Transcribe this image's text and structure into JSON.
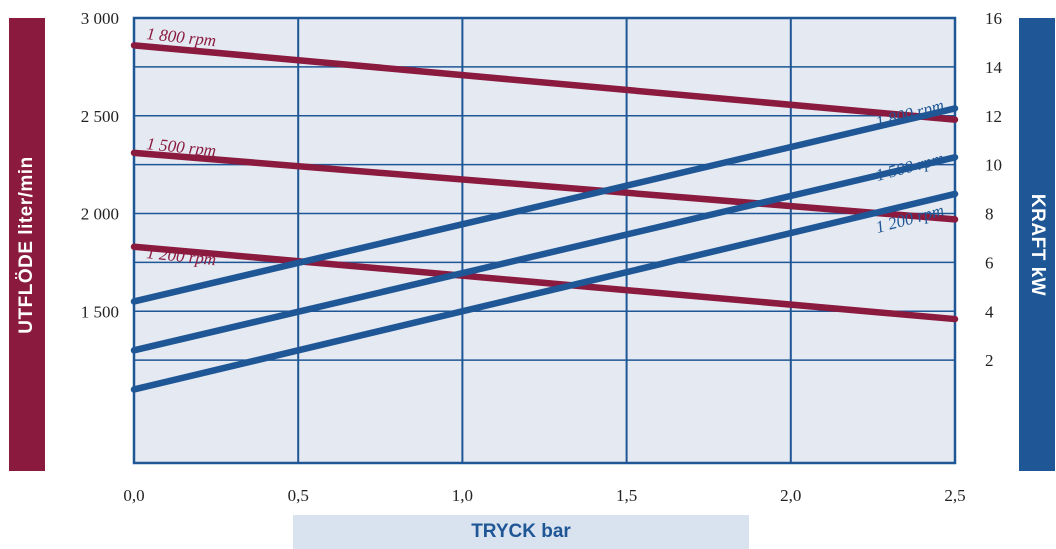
{
  "colors": {
    "flow": "#8b1a3f",
    "power": "#1f5695",
    "plot_bg": "#e4e9f2",
    "grid": "#1f5695",
    "xband_bg": "#d9e2ef",
    "xband_text": "#1f5695",
    "left_band": "#8b1a3f",
    "right_band": "#1f5695"
  },
  "chart_data": {
    "type": "line",
    "xlabel": "TRYCK bar",
    "ylabel_left": "UTFLÖDE liter/min",
    "ylabel_right": "KRAFT kW",
    "x_ticks": [
      "0,0",
      "0,5",
      "1,0",
      "1,5",
      "2,0",
      "2,5"
    ],
    "x_tick_values": [
      0,
      0.5,
      1.0,
      1.5,
      2.0,
      2.5
    ],
    "y_left_ticks": [
      "3 000",
      "2 500",
      "2 000",
      "1 500"
    ],
    "y_left_tick_values": [
      3000,
      2500,
      2000,
      1500
    ],
    "y_right_ticks": [
      "16",
      "14",
      "12",
      "10",
      "8",
      "6",
      "4",
      "2"
    ],
    "y_right_tick_values": [
      16,
      14,
      12,
      10,
      8,
      6,
      4,
      2
    ],
    "xlim": [
      0,
      2.5
    ],
    "ylim_left": [
      1000,
      3000
    ],
    "ylim_right": [
      0,
      16
    ],
    "grid": true,
    "series": [
      {
        "name": "1 800 rpm",
        "axis": "left",
        "x": [
          0,
          2.5
        ],
        "y": [
          2860,
          2480
        ]
      },
      {
        "name": "1 500 rpm",
        "axis": "left",
        "x": [
          0,
          2.5
        ],
        "y": [
          2310,
          1970
        ]
      },
      {
        "name": "1 200 rpm",
        "axis": "left",
        "x": [
          0,
          2.5
        ],
        "y": [
          1830,
          1460
        ]
      },
      {
        "name": "1 800 rpm",
        "axis": "right",
        "x": [
          0,
          2.5
        ],
        "y": [
          4.4,
          12.3
        ]
      },
      {
        "name": "1 500 rpm",
        "axis": "right",
        "x": [
          0,
          2.5
        ],
        "y": [
          2.4,
          10.3
        ]
      },
      {
        "name": "1 200 rpm",
        "axis": "right",
        "x": [
          0,
          2.5
        ],
        "y": [
          0.8,
          8.8
        ]
      }
    ]
  }
}
